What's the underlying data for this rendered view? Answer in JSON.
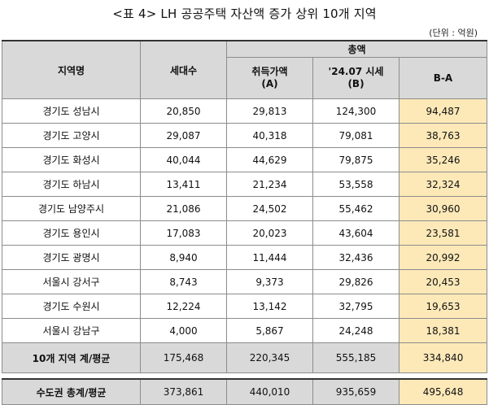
{
  "title": "<표 4> LH 공공주택 자산액 증가 상위 10개 지역",
  "unit": "(단위 : 억원)",
  "headers": {
    "region": "지역명",
    "households": "세대수",
    "total": "총액",
    "acq_line1": "취득가액",
    "acq_line2": "(A)",
    "mkt_line1": "'24.07 시세",
    "mkt_line2": "(B)",
    "diff": "B-A"
  },
  "rows": [
    {
      "region": "경기도 성남시",
      "households": "20,850",
      "a": "29,813",
      "b": "124,300",
      "ba": "94,487"
    },
    {
      "region": "경기도 고양시",
      "households": "29,087",
      "a": "40,318",
      "b": "79,081",
      "ba": "38,763"
    },
    {
      "region": "경기도 화성시",
      "households": "40,044",
      "a": "44,629",
      "b": "79,875",
      "ba": "35,246"
    },
    {
      "region": "경기도 하남시",
      "households": "13,411",
      "a": "21,234",
      "b": "53,558",
      "ba": "32,324"
    },
    {
      "region": "경기도 남양주시",
      "households": "21,086",
      "a": "24,502",
      "b": "55,462",
      "ba": "30,960"
    },
    {
      "region": "경기도 용인시",
      "households": "17,083",
      "a": "20,023",
      "b": "43,604",
      "ba": "23,581"
    },
    {
      "region": "경기도 광명시",
      "households": "8,940",
      "a": "11,444",
      "b": "32,436",
      "ba": "20,992"
    },
    {
      "region": "서울시 강서구",
      "households": "8,743",
      "a": "9,373",
      "b": "29,826",
      "ba": "20,453"
    },
    {
      "region": "경기도 수원시",
      "households": "12,224",
      "a": "13,142",
      "b": "32,795",
      "ba": "19,653"
    },
    {
      "region": "서울시 강남구",
      "households": "4,000",
      "a": "5,867",
      "b": "24,248",
      "ba": "18,381"
    }
  ],
  "top10_sum": {
    "region": "10개 지역 계/평균",
    "households": "175,468",
    "a": "220,345",
    "b": "555,185",
    "ba": "334,840"
  },
  "capital_total": {
    "region": "수도권 총계/평균",
    "households": "373,861",
    "a": "440,010",
    "b": "935,659",
    "ba": "495,648"
  },
  "colors": {
    "header_bg": "#d9d9d9",
    "highlight": "#fde9b8"
  }
}
